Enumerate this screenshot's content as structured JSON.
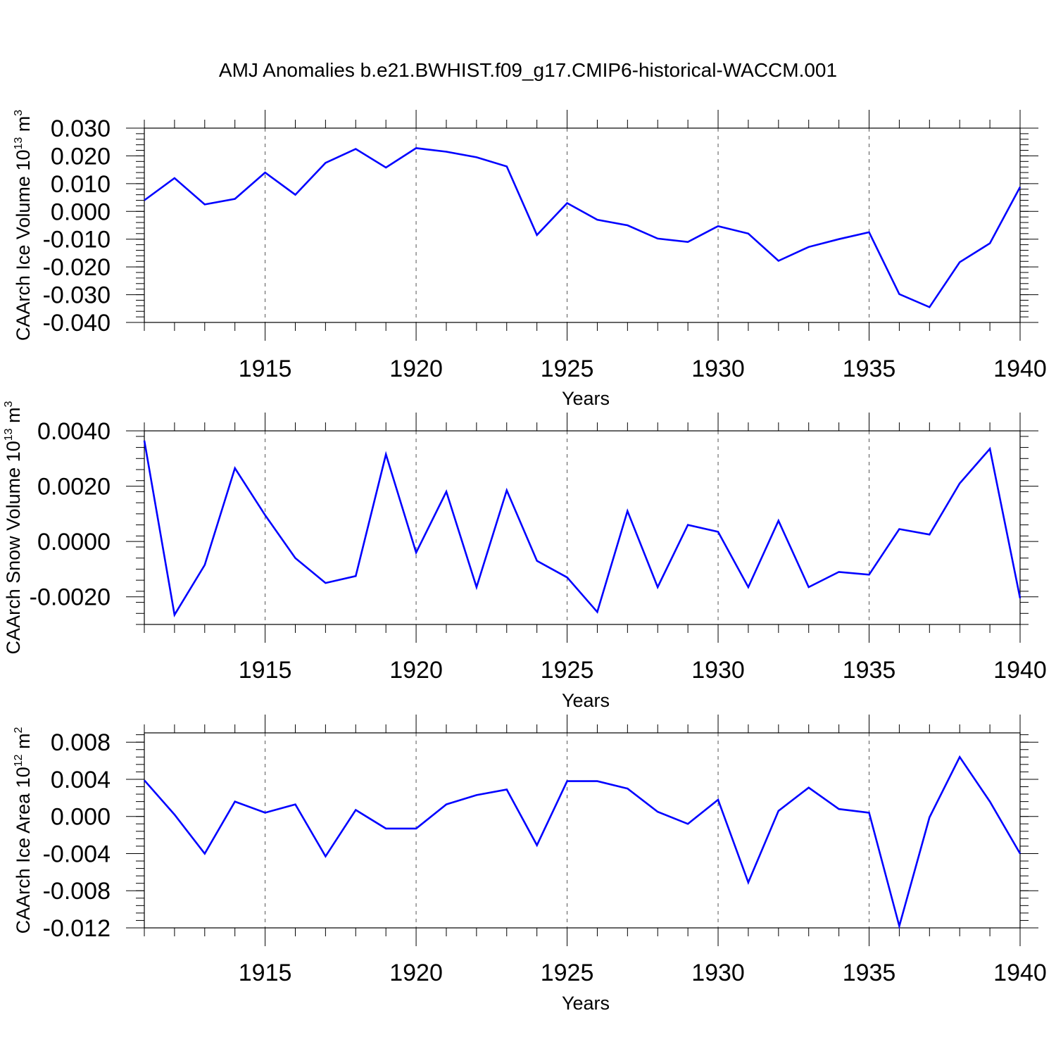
{
  "title": "AMJ Anomalies b.e21.BWHIST.f09_g17.CMIP6-historical-WACCM.001",
  "line_color": "#0000ff",
  "chart_data": [
    {
      "type": "line",
      "ylabel": {
        "text": "CAArch Ice Volume 10",
        "exp": "13",
        "unit": " m",
        "unit_exp": "3"
      },
      "xlabel": "Years",
      "xlim": [
        1911,
        1940
      ],
      "ylim": [
        -0.04,
        0.035
      ],
      "x_ticks": [
        1915,
        1920,
        1925,
        1930,
        1935,
        1940
      ],
      "y_ticks": [
        0.03,
        0.02,
        0.01,
        0.0,
        -0.01,
        -0.02,
        -0.03,
        -0.04
      ],
      "y_tick_labels": [
        "0.030",
        "0.020",
        "0.010",
        "0.000",
        "-0.010",
        "-0.020",
        "-0.030",
        "-0.040"
      ],
      "grid": "dashed vertical at major x ticks",
      "series": [
        {
          "x": [
            1911,
            1912,
            1913,
            1914,
            1915,
            1916,
            1917,
            1918,
            1919,
            1920,
            1921,
            1922,
            1923,
            1924,
            1925,
            1926,
            1927,
            1928,
            1929,
            1930,
            1931,
            1932,
            1933,
            1934,
            1935,
            1936,
            1937,
            1938,
            1939,
            1940
          ],
          "values": [
            0.004,
            0.012,
            0.0025,
            0.0045,
            0.014,
            0.006,
            0.0175,
            0.0225,
            0.0158,
            0.0228,
            0.0215,
            0.0195,
            0.0162,
            -0.0085,
            0.003,
            -0.003,
            -0.005,
            -0.0098,
            -0.011,
            -0.0053,
            -0.008,
            -0.0178,
            -0.0128,
            -0.01,
            -0.0075,
            -0.0298,
            -0.0345,
            -0.0183,
            -0.0115,
            0.0088
          ]
        }
      ]
    },
    {
      "type": "line",
      "ylabel": {
        "text": "CAArch Snow Volume 10",
        "exp": "13",
        "unit": " m",
        "unit_exp": "3"
      },
      "xlabel": "Years",
      "xlim": [
        1911,
        1940
      ],
      "ylim": [
        -0.003,
        0.004
      ],
      "x_ticks": [
        1915,
        1920,
        1925,
        1930,
        1935,
        1940
      ],
      "y_ticks": [
        0.004,
        0.002,
        0.0,
        -0.002
      ],
      "y_tick_labels": [
        "0.0040",
        "0.0020",
        "0.0000",
        "-0.0020"
      ],
      "grid": "dashed vertical at major x ticks",
      "series": [
        {
          "x": [
            1911,
            1912,
            1913,
            1914,
            1915,
            1916,
            1917,
            1918,
            1919,
            1920,
            1921,
            1922,
            1923,
            1924,
            1925,
            1926,
            1927,
            1928,
            1929,
            1930,
            1931,
            1932,
            1933,
            1934,
            1935,
            1936,
            1937,
            1938,
            1939,
            1940
          ],
          "values": [
            0.00365,
            -0.00265,
            -0.00085,
            0.00265,
            0.00095,
            -0.0006,
            -0.0015,
            -0.00125,
            0.00315,
            -0.0004,
            0.0018,
            -0.00165,
            0.00185,
            -0.0007,
            -0.0013,
            -0.00255,
            0.0011,
            -0.00165,
            0.0006,
            0.00035,
            -0.00165,
            0.00075,
            -0.00165,
            -0.0011,
            -0.0012,
            0.00045,
            0.00025,
            0.0021,
            0.00335,
            -0.00205
          ]
        }
      ]
    },
    {
      "type": "line",
      "ylabel": {
        "text": "CAArch Ice Area 10",
        "exp": "12",
        "unit": " m",
        "unit_exp": "2"
      },
      "xlabel": "Years",
      "xlim": [
        1911,
        1940
      ],
      "ylim": [
        -0.012,
        0.009
      ],
      "x_ticks": [
        1915,
        1920,
        1925,
        1930,
        1935,
        1940
      ],
      "y_ticks": [
        0.008,
        0.004,
        0.0,
        -0.004,
        -0.008,
        -0.012
      ],
      "y_tick_labels": [
        "0.008",
        "0.004",
        "0.000",
        "-0.004",
        "-0.008",
        "-0.012"
      ],
      "grid": "dashed vertical at major x ticks",
      "series": [
        {
          "x": [
            1911,
            1912,
            1913,
            1914,
            1915,
            1916,
            1917,
            1918,
            1919,
            1920,
            1921,
            1922,
            1923,
            1924,
            1925,
            1926,
            1927,
            1928,
            1929,
            1930,
            1931,
            1932,
            1933,
            1934,
            1935,
            1936,
            1937,
            1938,
            1939,
            1940
          ],
          "values": [
            0.0039,
            0.0002,
            -0.004,
            0.0016,
            0.0004,
            0.0013,
            -0.0043,
            0.0007,
            -0.0013,
            -0.0013,
            0.0013,
            0.0023,
            0.0029,
            -0.0031,
            0.0038,
            0.0038,
            0.003,
            0.0005,
            -0.0008,
            0.0018,
            -0.0071,
            0.0006,
            0.0031,
            0.0008,
            0.0004,
            -0.0118,
            -0.0001,
            0.0064,
            0.0016,
            -0.004
          ]
        }
      ]
    }
  ]
}
